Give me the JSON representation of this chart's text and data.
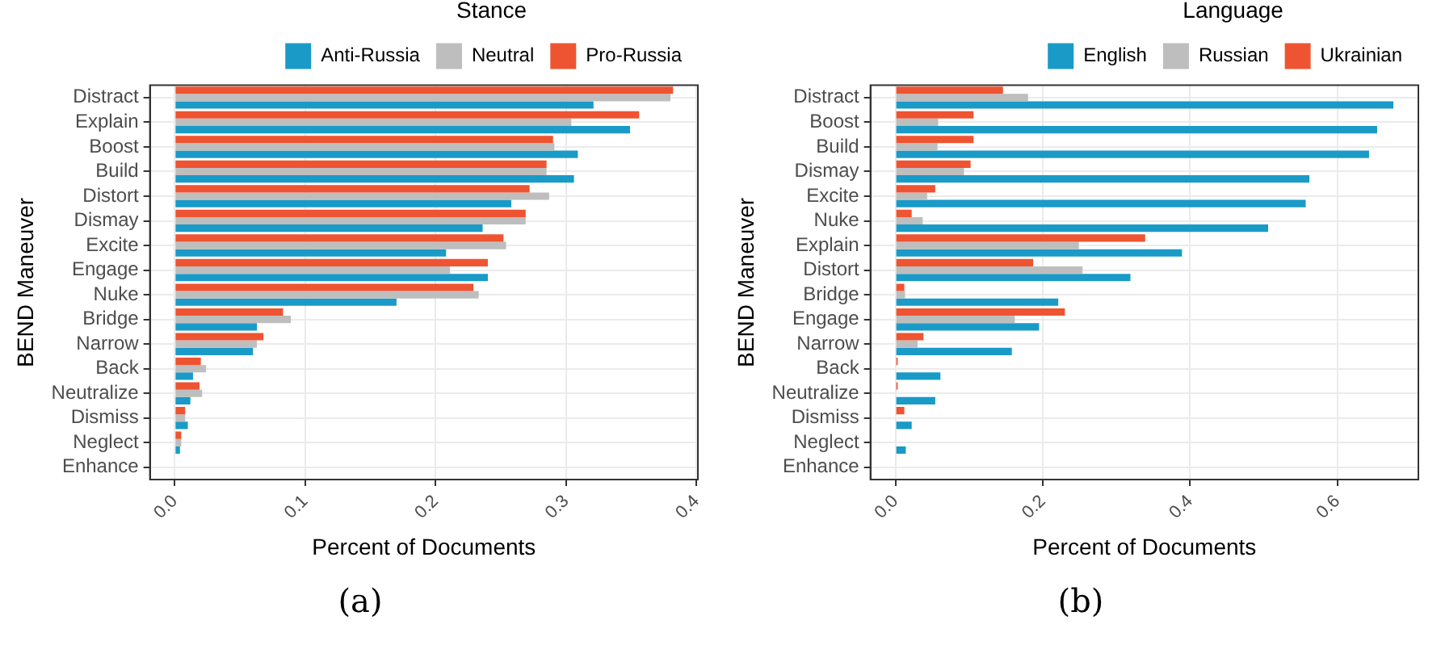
{
  "chart_data": [
    {
      "type": "bar",
      "orientation": "horizontal",
      "xlabel": "Percent of Documents",
      "ylabel": "BEND Maneuver",
      "legend_title": "Stance",
      "legend": "top",
      "grid": true,
      "categories": [
        "Distract",
        "Explain",
        "Boost",
        "Build",
        "Distort",
        "Dismay",
        "Excite",
        "Engage",
        "Nuke",
        "Bridge",
        "Narrow",
        "Back",
        "Neutralize",
        "Dismiss",
        "Neglect",
        "Enhance"
      ],
      "series": [
        {
          "name": "Anti-Russia",
          "color": "#1a9ac7",
          "values": [
            0.321,
            0.349,
            0.309,
            0.306,
            0.258,
            0.236,
            0.208,
            0.24,
            0.17,
            0.063,
            0.06,
            0.014,
            0.012,
            0.01,
            0.004,
            0
          ]
        },
        {
          "name": "Neutral",
          "color": "#bebebe",
          "values": [
            0.38,
            0.304,
            0.291,
            0.285,
            0.287,
            0.269,
            0.254,
            0.211,
            0.233,
            0.089,
            0.063,
            0.024,
            0.021,
            0.008,
            0.005,
            0
          ]
        },
        {
          "name": "Pro-Russia",
          "color": "#ee5431",
          "values": [
            0.382,
            0.356,
            0.29,
            0.285,
            0.272,
            0.269,
            0.252,
            0.24,
            0.229,
            0.083,
            0.068,
            0.02,
            0.019,
            0.008,
            0.005,
            0
          ]
        }
      ],
      "xlim": [
        -0.019,
        0.401
      ],
      "xticks": [
        {
          "value": 0,
          "label": "0.0"
        },
        0.1,
        0.2,
        0.3,
        0.4
      ],
      "annotations": [
        "(a)"
      ]
    },
    {
      "type": "bar",
      "orientation": "horizontal",
      "xlabel": "Percent of Documents",
      "ylabel": "BEND Maneuver",
      "legend_title": "Language",
      "legend": "top",
      "grid": true,
      "categories": [
        "Distract",
        "Boost",
        "Build",
        "Dismay",
        "Excite",
        "Nuke",
        "Explain",
        "Distort",
        "Bridge",
        "Engage",
        "Narrow",
        "Back",
        "Neutralize",
        "Dismiss",
        "Neglect",
        "Enhance"
      ],
      "series": [
        {
          "name": "English",
          "color": "#1a9ac7",
          "values": [
            0.676,
            0.654,
            0.643,
            0.562,
            0.557,
            0.506,
            0.389,
            0.319,
            0.221,
            0.195,
            0.158,
            0.061,
            0.054,
            0.022,
            0.014,
            0
          ]
        },
        {
          "name": "Russian",
          "color": "#bebebe",
          "values": [
            0.18,
            0.058,
            0.057,
            0.093,
            0.043,
            0.037,
            0.249,
            0.254,
            0.013,
            0.162,
            0.03,
            null,
            0,
            null,
            0,
            0
          ]
        },
        {
          "name": "Ukrainian",
          "color": "#ee5431",
          "values": [
            0.146,
            0.106,
            0.106,
            0.102,
            0.054,
            0.022,
            0.339,
            0.187,
            0.012,
            0.23,
            0.038,
            0.003,
            0.003,
            0.012,
            0,
            0
          ]
        }
      ],
      "xlim": [
        -0.034,
        0.71
      ],
      "xticks": [
        {
          "value": 0,
          "label": "0.0"
        },
        0.2,
        0.4,
        0.6
      ],
      "annotations": [
        "(b)"
      ]
    }
  ]
}
